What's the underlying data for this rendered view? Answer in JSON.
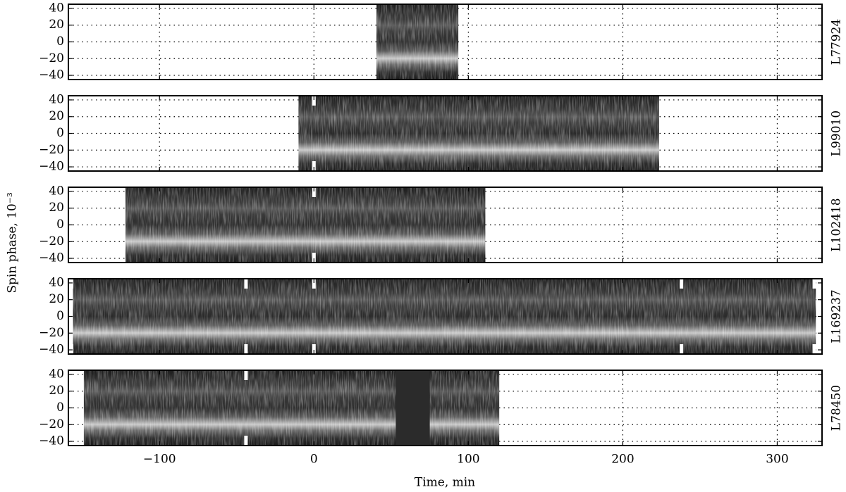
{
  "chart_data": {
    "type": "heatmap",
    "xlabel": "Time, min",
    "ylabel": "Spin phase, 10⁻³",
    "xlim": [
      -159,
      329
    ],
    "xticks": [
      {
        "value": -100,
        "label": "−100"
      },
      0,
      100,
      200,
      300
    ],
    "grid": true,
    "panels": [
      {
        "name": "L77924",
        "extent": [
          40.5,
          93.5
        ],
        "ylim": [
          -45,
          45
        ],
        "yticks": [
          {
            "value": -40,
            "label": "−40"
          },
          {
            "value": -20,
            "label": "−20"
          },
          0,
          20,
          40
        ],
        "markers": []
      },
      {
        "name": "L99010",
        "extent": [
          -10,
          223.5
        ],
        "ylim": [
          -45,
          45
        ],
        "yticks": [
          {
            "value": -40,
            "label": "−40"
          },
          {
            "value": -20,
            "label": "−20"
          },
          0,
          20,
          40
        ],
        "markers": [
          0
        ]
      },
      {
        "name": "L102418",
        "extent": [
          -122,
          111
        ],
        "ylim": [
          -45,
          45
        ],
        "yticks": [
          {
            "value": -40,
            "label": "−40"
          },
          {
            "value": -20,
            "label": "−20"
          },
          0,
          20,
          40
        ],
        "markers": [
          0
        ]
      },
      {
        "name": "L169237",
        "extent": [
          -156,
          325
        ],
        "ylim": [
          -45,
          45
        ],
        "yticks": [
          {
            "value": -40,
            "label": "−40"
          },
          {
            "value": -20,
            "label": "−20"
          },
          0,
          20,
          40
        ],
        "markers": [
          -157,
          -44,
          0,
          238,
          324
        ]
      },
      {
        "name": "L78450",
        "extent": [
          -149,
          120
        ],
        "ylim": [
          -45,
          45
        ],
        "yticks": [
          {
            "value": -40,
            "label": "−40"
          },
          {
            "value": -20,
            "label": "−20"
          },
          0,
          20,
          40
        ],
        "markers": [
          -44
        ],
        "dark_spans": [
          [
            53,
            75
          ]
        ]
      }
    ]
  }
}
